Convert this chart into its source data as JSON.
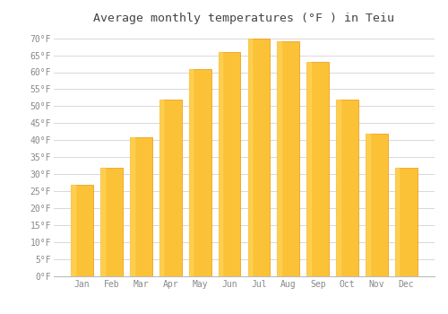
{
  "title": "Average monthly temperatures (°F ) in Teiu",
  "months": [
    "Jan",
    "Feb",
    "Mar",
    "Apr",
    "May",
    "Jun",
    "Jul",
    "Aug",
    "Sep",
    "Oct",
    "Nov",
    "Dec"
  ],
  "values": [
    27,
    32,
    41,
    52,
    61,
    66,
    70,
    69,
    63,
    52,
    42,
    32
  ],
  "bar_color_main": "#FCC237",
  "bar_color_left": "#F5A623",
  "bar_edge_color": "#E8960A",
  "background_color": "#FFFFFF",
  "plot_bg_color": "#FFFFFF",
  "grid_color": "#D8D8D8",
  "tick_color": "#888888",
  "title_color": "#444444",
  "ylim": [
    0,
    72
  ],
  "yticks": [
    0,
    5,
    10,
    15,
    20,
    25,
    30,
    35,
    40,
    45,
    50,
    55,
    60,
    65,
    70
  ],
  "title_fontsize": 9.5,
  "tick_fontsize": 7,
  "bar_width": 0.75
}
